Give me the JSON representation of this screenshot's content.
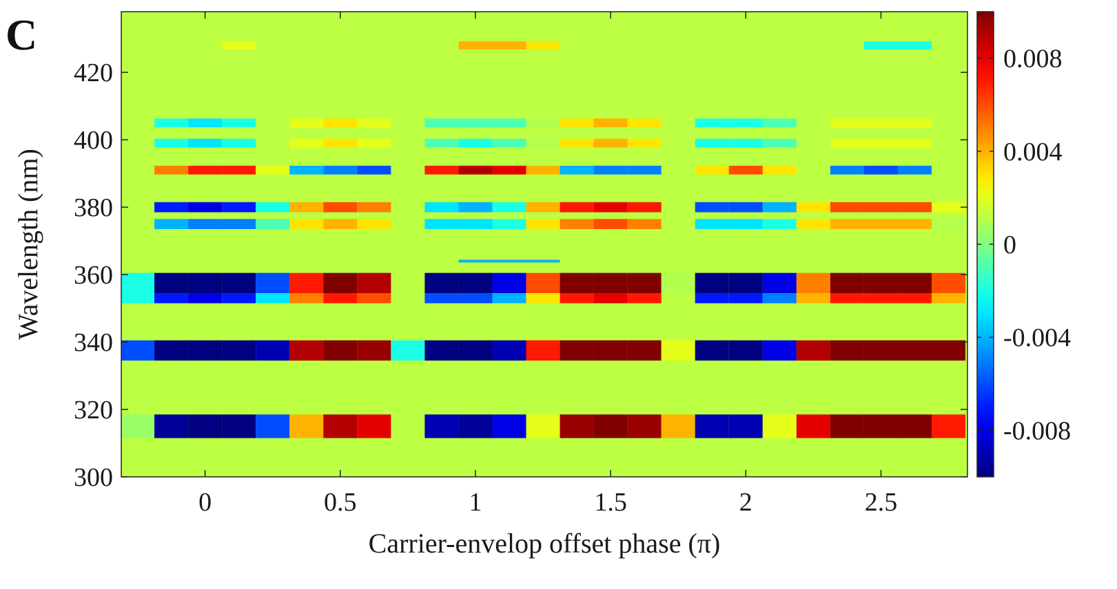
{
  "panel_label": "C",
  "chart_data": {
    "type": "heatmap",
    "xlabel": "Carrier-envelop offset phase (π)",
    "ylabel": "Wavelength (nm)",
    "xlim": [
      -0.31,
      2.82
    ],
    "ylim": [
      300,
      438
    ],
    "xticks": [
      0,
      0.5,
      1,
      1.5,
      2,
      2.5
    ],
    "xtick_labels": [
      "0",
      "0.5",
      "1",
      "1.5",
      "2",
      "2.5"
    ],
    "yticks": [
      300,
      320,
      340,
      360,
      380,
      400,
      420
    ],
    "ytick_labels": [
      "300",
      "320",
      "340",
      "360",
      "380",
      "400",
      "420"
    ],
    "colorbar": {
      "colormap": "jet",
      "range": [
        -0.01,
        0.01
      ],
      "ticks": [
        -0.008,
        -0.004,
        0,
        0.004,
        0.008
      ],
      "tick_labels": [
        "-0.008",
        "-0.004",
        "0",
        "0.004",
        "0.008"
      ]
    },
    "background_value": 0.0012,
    "phase_columns": [
      -0.25,
      -0.125,
      0,
      0.125,
      0.25,
      0.375,
      0.5,
      0.625,
      0.75,
      0.875,
      1,
      1.125,
      1.25,
      1.375,
      1.5,
      1.625,
      1.75,
      1.875,
      2,
      2.125,
      2.25,
      2.375,
      2.5,
      2.625,
      2.75
    ],
    "bands": [
      {
        "center_nm": 315,
        "half_width_nm": 3.5,
        "values": [
          0.0005,
          -0.0095,
          -0.01,
          -0.01,
          -0.006,
          0.004,
          0.009,
          0.008,
          0,
          -0.009,
          -0.0095,
          -0.008,
          0.002,
          0.0095,
          0.01,
          0.0095,
          0.004,
          -0.009,
          -0.009,
          0.002,
          0.008,
          0.01,
          0.01,
          0.01,
          0.007
        ]
      },
      {
        "center_nm": 337.5,
        "half_width_nm": 3,
        "values": [
          -0.006,
          -0.01,
          -0.01,
          -0.01,
          -0.009,
          0.009,
          0.01,
          0.0095,
          -0.002,
          -0.01,
          -0.01,
          -0.009,
          0.007,
          0.01,
          0.01,
          0.01,
          0.002,
          -0.01,
          -0.01,
          -0.008,
          0.009,
          0.01,
          0.01,
          0.01,
          0.01
        ]
      },
      {
        "center_nm": 357.5,
        "half_width_nm": 3,
        "values": [
          -0.002,
          -0.01,
          -0.01,
          -0.01,
          -0.006,
          0.007,
          0.01,
          0.009,
          0,
          -0.01,
          -0.01,
          -0.008,
          0.006,
          0.01,
          0.01,
          0.01,
          0.001,
          -0.01,
          -0.01,
          -0.008,
          0.005,
          0.01,
          0.01,
          0.01,
          0.006
        ]
      },
      {
        "center_nm": 353,
        "half_width_nm": 1.5,
        "values": [
          -0.002,
          -0.007,
          -0.008,
          -0.007,
          -0.003,
          0.005,
          0.007,
          0.006,
          0,
          -0.006,
          -0.006,
          -0.004,
          0.003,
          0.007,
          0.008,
          0.007,
          0,
          -0.007,
          -0.007,
          -0.005,
          0.004,
          0.007,
          0.007,
          0.007,
          0.004
        ]
      },
      {
        "center_nm": 380,
        "half_width_nm": 1.5,
        "values": [
          0,
          -0.007,
          -0.008,
          -0.007,
          -0.002,
          0.004,
          0.006,
          0.005,
          0,
          -0.003,
          -0.004,
          -0.002,
          0.004,
          0.007,
          0.008,
          0.007,
          0,
          -0.006,
          -0.006,
          -0.004,
          0.003,
          0.006,
          0.006,
          0.006,
          0.002
        ]
      },
      {
        "center_nm": 375,
        "half_width_nm": 1.5,
        "values": [
          0,
          -0.004,
          -0.005,
          -0.005,
          -0.001,
          0.003,
          0.004,
          0.003,
          0,
          -0.003,
          -0.003,
          -0.002,
          0.003,
          0.005,
          0.006,
          0.005,
          0,
          -0.003,
          -0.003,
          -0.002,
          0.003,
          0.004,
          0.004,
          0.004,
          0.001
        ]
      },
      {
        "center_nm": 391,
        "half_width_nm": 1.3,
        "values": [
          0,
          0.005,
          0.007,
          0.007,
          0.002,
          -0.004,
          -0.005,
          -0.006,
          0,
          0.007,
          0.009,
          0.008,
          0.004,
          -0.004,
          -0.005,
          -0.005,
          0,
          0.003,
          0.006,
          0.003,
          0,
          -0.005,
          -0.006,
          -0.005,
          0
        ]
      },
      {
        "center_nm": 399,
        "half_width_nm": 1.3,
        "values": [
          0,
          -0.002,
          -0.003,
          -0.002,
          0,
          0.002,
          0.003,
          0.002,
          0,
          -0.001,
          -0.002,
          -0.001,
          0.001,
          0.003,
          0.004,
          0.003,
          0,
          -0.002,
          -0.002,
          -0.001,
          0,
          0.002,
          0.002,
          0.002,
          0
        ]
      },
      {
        "center_nm": 405,
        "half_width_nm": 1.3,
        "values": [
          0,
          -0.002,
          -0.003,
          -0.002,
          0,
          0.002,
          0.003,
          0.002,
          0,
          -0.001,
          -0.001,
          -0.001,
          0.001,
          0.003,
          0.004,
          0.003,
          0,
          -0.002,
          -0.002,
          -0.001,
          0,
          0.002,
          0.002,
          0.002,
          0
        ]
      },
      {
        "center_nm": 428,
        "half_width_nm": 1.2,
        "values": [
          0,
          0,
          0,
          0.002,
          0,
          0,
          0,
          0,
          0,
          0,
          0.004,
          0.004,
          0.003,
          0,
          0,
          0,
          0,
          0,
          0,
          0,
          0,
          0,
          -0.002,
          -0.002,
          0
        ]
      },
      {
        "center_nm": 364,
        "half_width_nm": 0.4,
        "values": [
          0,
          0,
          0,
          0,
          0,
          0,
          0,
          0,
          0,
          0,
          -0.004,
          -0.004,
          -0.004,
          0,
          0,
          0,
          0,
          0,
          0,
          0,
          0,
          0,
          0,
          0,
          0
        ]
      }
    ]
  }
}
